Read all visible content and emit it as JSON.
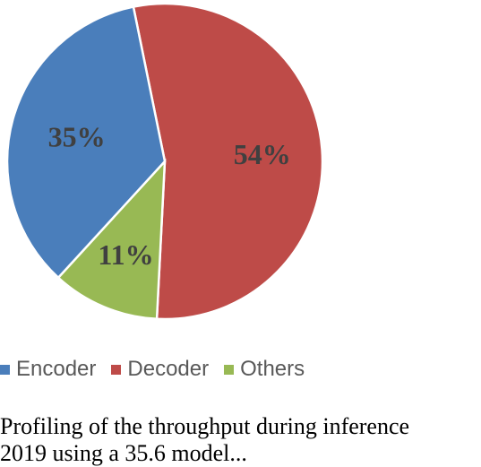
{
  "chart_data": {
    "type": "pie",
    "categories": [
      "Encoder",
      "Decoder",
      "Others"
    ],
    "values": [
      35,
      54,
      11
    ],
    "labels": [
      "35%",
      "54%",
      "11%"
    ],
    "colors": [
      "#4a7ebb",
      "#be4b48",
      "#98b954"
    ],
    "legend_position": "bottom"
  },
  "legend": {
    "items": [
      {
        "label": "Encoder",
        "color": "#4a7ebb"
      },
      {
        "label": "Decoder",
        "color": "#be4b48"
      },
      {
        "label": "Others",
        "color": "#98b954"
      }
    ]
  },
  "caption": {
    "line1": "Profiling of the throughput during inference",
    "line2": "2019 using a 35.6 model..."
  }
}
